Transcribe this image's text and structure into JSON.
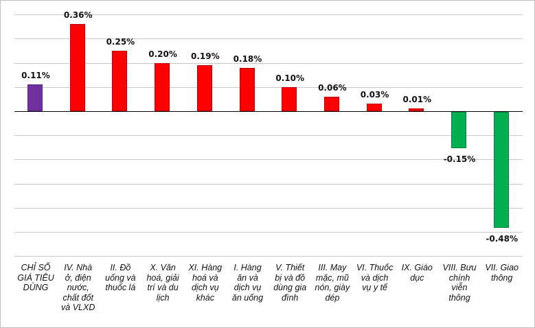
{
  "chart_data": {
    "type": "bar",
    "title": "",
    "xlabel": "",
    "ylabel": "",
    "ylim": [
      -0.6,
      0.4
    ],
    "grid": true,
    "legend": null,
    "unit": "%",
    "categories": [
      "CHỈ SỐ GIÁ TIÊU DÙNG",
      "IV. Nhà ở, điện nước, chất đốt và VLXD",
      "II. Đồ uống và thuốc lá",
      "X. Văn hoá, giải trí và du lịch",
      "XI. Hàng hoá và dịch vụ khác",
      "I. Hàng ăn và dịch vụ ăn uống",
      "V. Thiết bị và đồ dùng gia đình",
      "III. May mặc, mũ nón, giày dép",
      "VI. Thuốc và dịch vụ y tế",
      "IX. Giáo dục",
      "VIII. Bưu chính viễn thông",
      "VII. Giao thông"
    ],
    "category_lines": [
      "CHỈ SỐ\nGIÁ TIÊU\nDÙNG",
      "IV. Nhà\nở, điện\nnước,\nchất đốt\nvà VLXD",
      "II. Đồ\nuống và\nthuốc lá",
      "X. Văn\nhoá, giải\ntrí và du\nlịch",
      "XI. Hàng\nhoá và\ndịch vụ\nkhác",
      "I. Hàng\năn và\ndịch vụ\năn uống",
      "V. Thiết\nbị và đồ\ndùng gia\nđình",
      "III. May\nmặc, mũ\nnón, giày\ndép",
      "VI. Thuốc\nvà dịch\nvụ y tế",
      "IX. Giáo\ndục",
      "VIII. Bưu\nchính\nviễn\nthông",
      "VII. Giao\nthông"
    ],
    "values": [
      0.11,
      0.36,
      0.25,
      0.2,
      0.19,
      0.18,
      0.1,
      0.06,
      0.03,
      0.01,
      -0.15,
      -0.48
    ],
    "data_labels": [
      "0.11%",
      "0.36%",
      "0.25%",
      "0.20%",
      "0.19%",
      "0.18%",
      "0.10%",
      "0.06%",
      "0.03%",
      "0.01%",
      "-0.15%",
      "-0.48%"
    ],
    "colors": {
      "index": "#7030a0",
      "positive": "#ff0000",
      "negative": "#00b050"
    }
  }
}
